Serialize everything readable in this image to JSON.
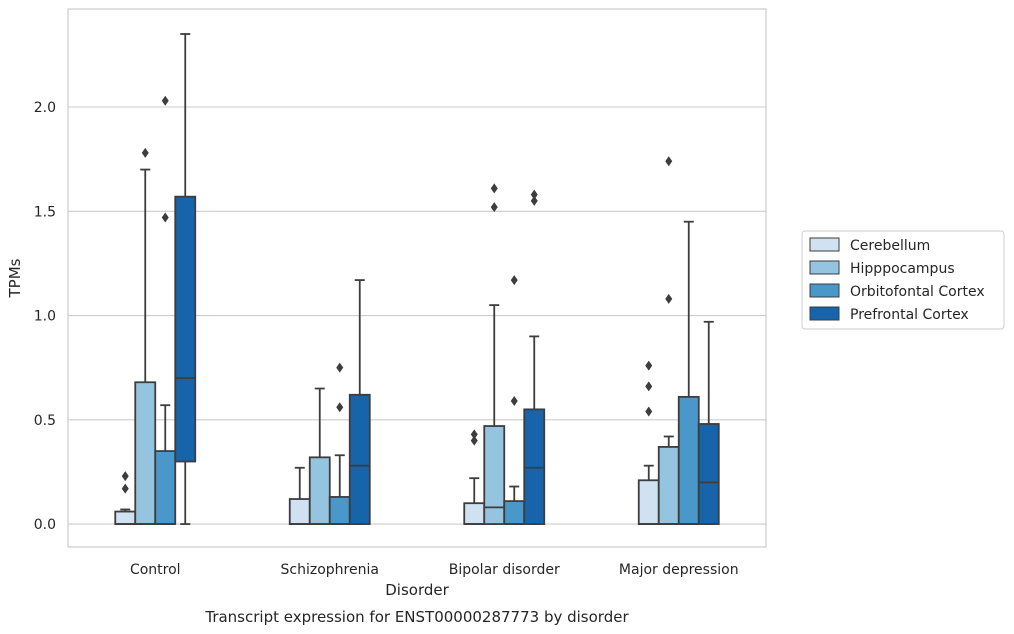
{
  "chart_data": {
    "type": "box",
    "caption": "Transcript expression for ENST00000287773 by disorder",
    "xlabel": "Disorder",
    "ylabel": "TPMs",
    "ylim": [
      -0.11,
      2.47
    ],
    "yticks": [
      "0.0",
      "0.5",
      "1.0",
      "1.5",
      "2.0"
    ],
    "ytick_values": [
      0.0,
      0.5,
      1.0,
      1.5,
      2.0
    ],
    "grid": true,
    "legend_position": "right",
    "categories": [
      "Control",
      "Schizophrenia",
      "Bipolar disorder",
      "Major depression"
    ],
    "series": [
      {
        "name": "Cerebellum",
        "color": "#d0e1f2",
        "boxes": [
          {
            "q1": 0.0,
            "median": 0.0,
            "q3": 0.06,
            "whisker_low": 0.0,
            "whisker_high": 0.07,
            "outliers": [
              0.17,
              0.23
            ]
          },
          {
            "q1": 0.0,
            "median": 0.0,
            "q3": 0.12,
            "whisker_low": 0.0,
            "whisker_high": 0.27,
            "outliers": []
          },
          {
            "q1": 0.0,
            "median": 0.0,
            "q3": 0.1,
            "whisker_low": 0.0,
            "whisker_high": 0.22,
            "outliers": [
              0.4,
              0.43
            ]
          },
          {
            "q1": 0.0,
            "median": 0.0,
            "q3": 0.21,
            "whisker_low": 0.0,
            "whisker_high": 0.28,
            "outliers": [
              0.54,
              0.66,
              0.76
            ]
          }
        ]
      },
      {
        "name": "Hipppocampus",
        "color": "#94c4df",
        "boxes": [
          {
            "q1": 0.0,
            "median": 0.0,
            "q3": 0.68,
            "whisker_low": 0.0,
            "whisker_high": 1.7,
            "outliers": [
              1.78
            ]
          },
          {
            "q1": 0.0,
            "median": 0.0,
            "q3": 0.32,
            "whisker_low": 0.0,
            "whisker_high": 0.65,
            "outliers": []
          },
          {
            "q1": 0.0,
            "median": 0.08,
            "q3": 0.47,
            "whisker_low": 0.0,
            "whisker_high": 1.05,
            "outliers": [
              1.52,
              1.61
            ]
          },
          {
            "q1": 0.0,
            "median": 0.0,
            "q3": 0.37,
            "whisker_low": 0.0,
            "whisker_high": 0.42,
            "outliers": [
              1.08,
              1.74
            ]
          }
        ]
      },
      {
        "name": "Orbitofontal Cortex",
        "color": "#4a98c9",
        "boxes": [
          {
            "q1": 0.0,
            "median": 0.0,
            "q3": 0.35,
            "whisker_low": 0.0,
            "whisker_high": 0.57,
            "outliers": [
              1.47,
              2.03
            ]
          },
          {
            "q1": 0.0,
            "median": 0.0,
            "q3": 0.13,
            "whisker_low": 0.0,
            "whisker_high": 0.33,
            "outliers": [
              0.56,
              0.75
            ]
          },
          {
            "q1": 0.0,
            "median": 0.0,
            "q3": 0.11,
            "whisker_low": 0.0,
            "whisker_high": 0.18,
            "outliers": [
              0.59,
              1.17
            ]
          },
          {
            "q1": 0.0,
            "median": 0.0,
            "q3": 0.61,
            "whisker_low": 0.0,
            "whisker_high": 1.45,
            "outliers": []
          }
        ]
      },
      {
        "name": "Prefrontal Cortex",
        "color": "#1764ab",
        "boxes": [
          {
            "q1": 0.3,
            "median": 0.7,
            "q3": 1.57,
            "whisker_low": 0.0,
            "whisker_high": 2.35,
            "outliers": []
          },
          {
            "q1": 0.0,
            "median": 0.28,
            "q3": 0.62,
            "whisker_low": 0.0,
            "whisker_high": 1.17,
            "outliers": []
          },
          {
            "q1": 0.0,
            "median": 0.27,
            "q3": 0.55,
            "whisker_low": 0.0,
            "whisker_high": 0.9,
            "outliers": [
              1.55,
              1.58
            ]
          },
          {
            "q1": 0.0,
            "median": 0.2,
            "q3": 0.48,
            "whisker_low": 0.0,
            "whisker_high": 0.97,
            "outliers": []
          }
        ]
      }
    ]
  }
}
